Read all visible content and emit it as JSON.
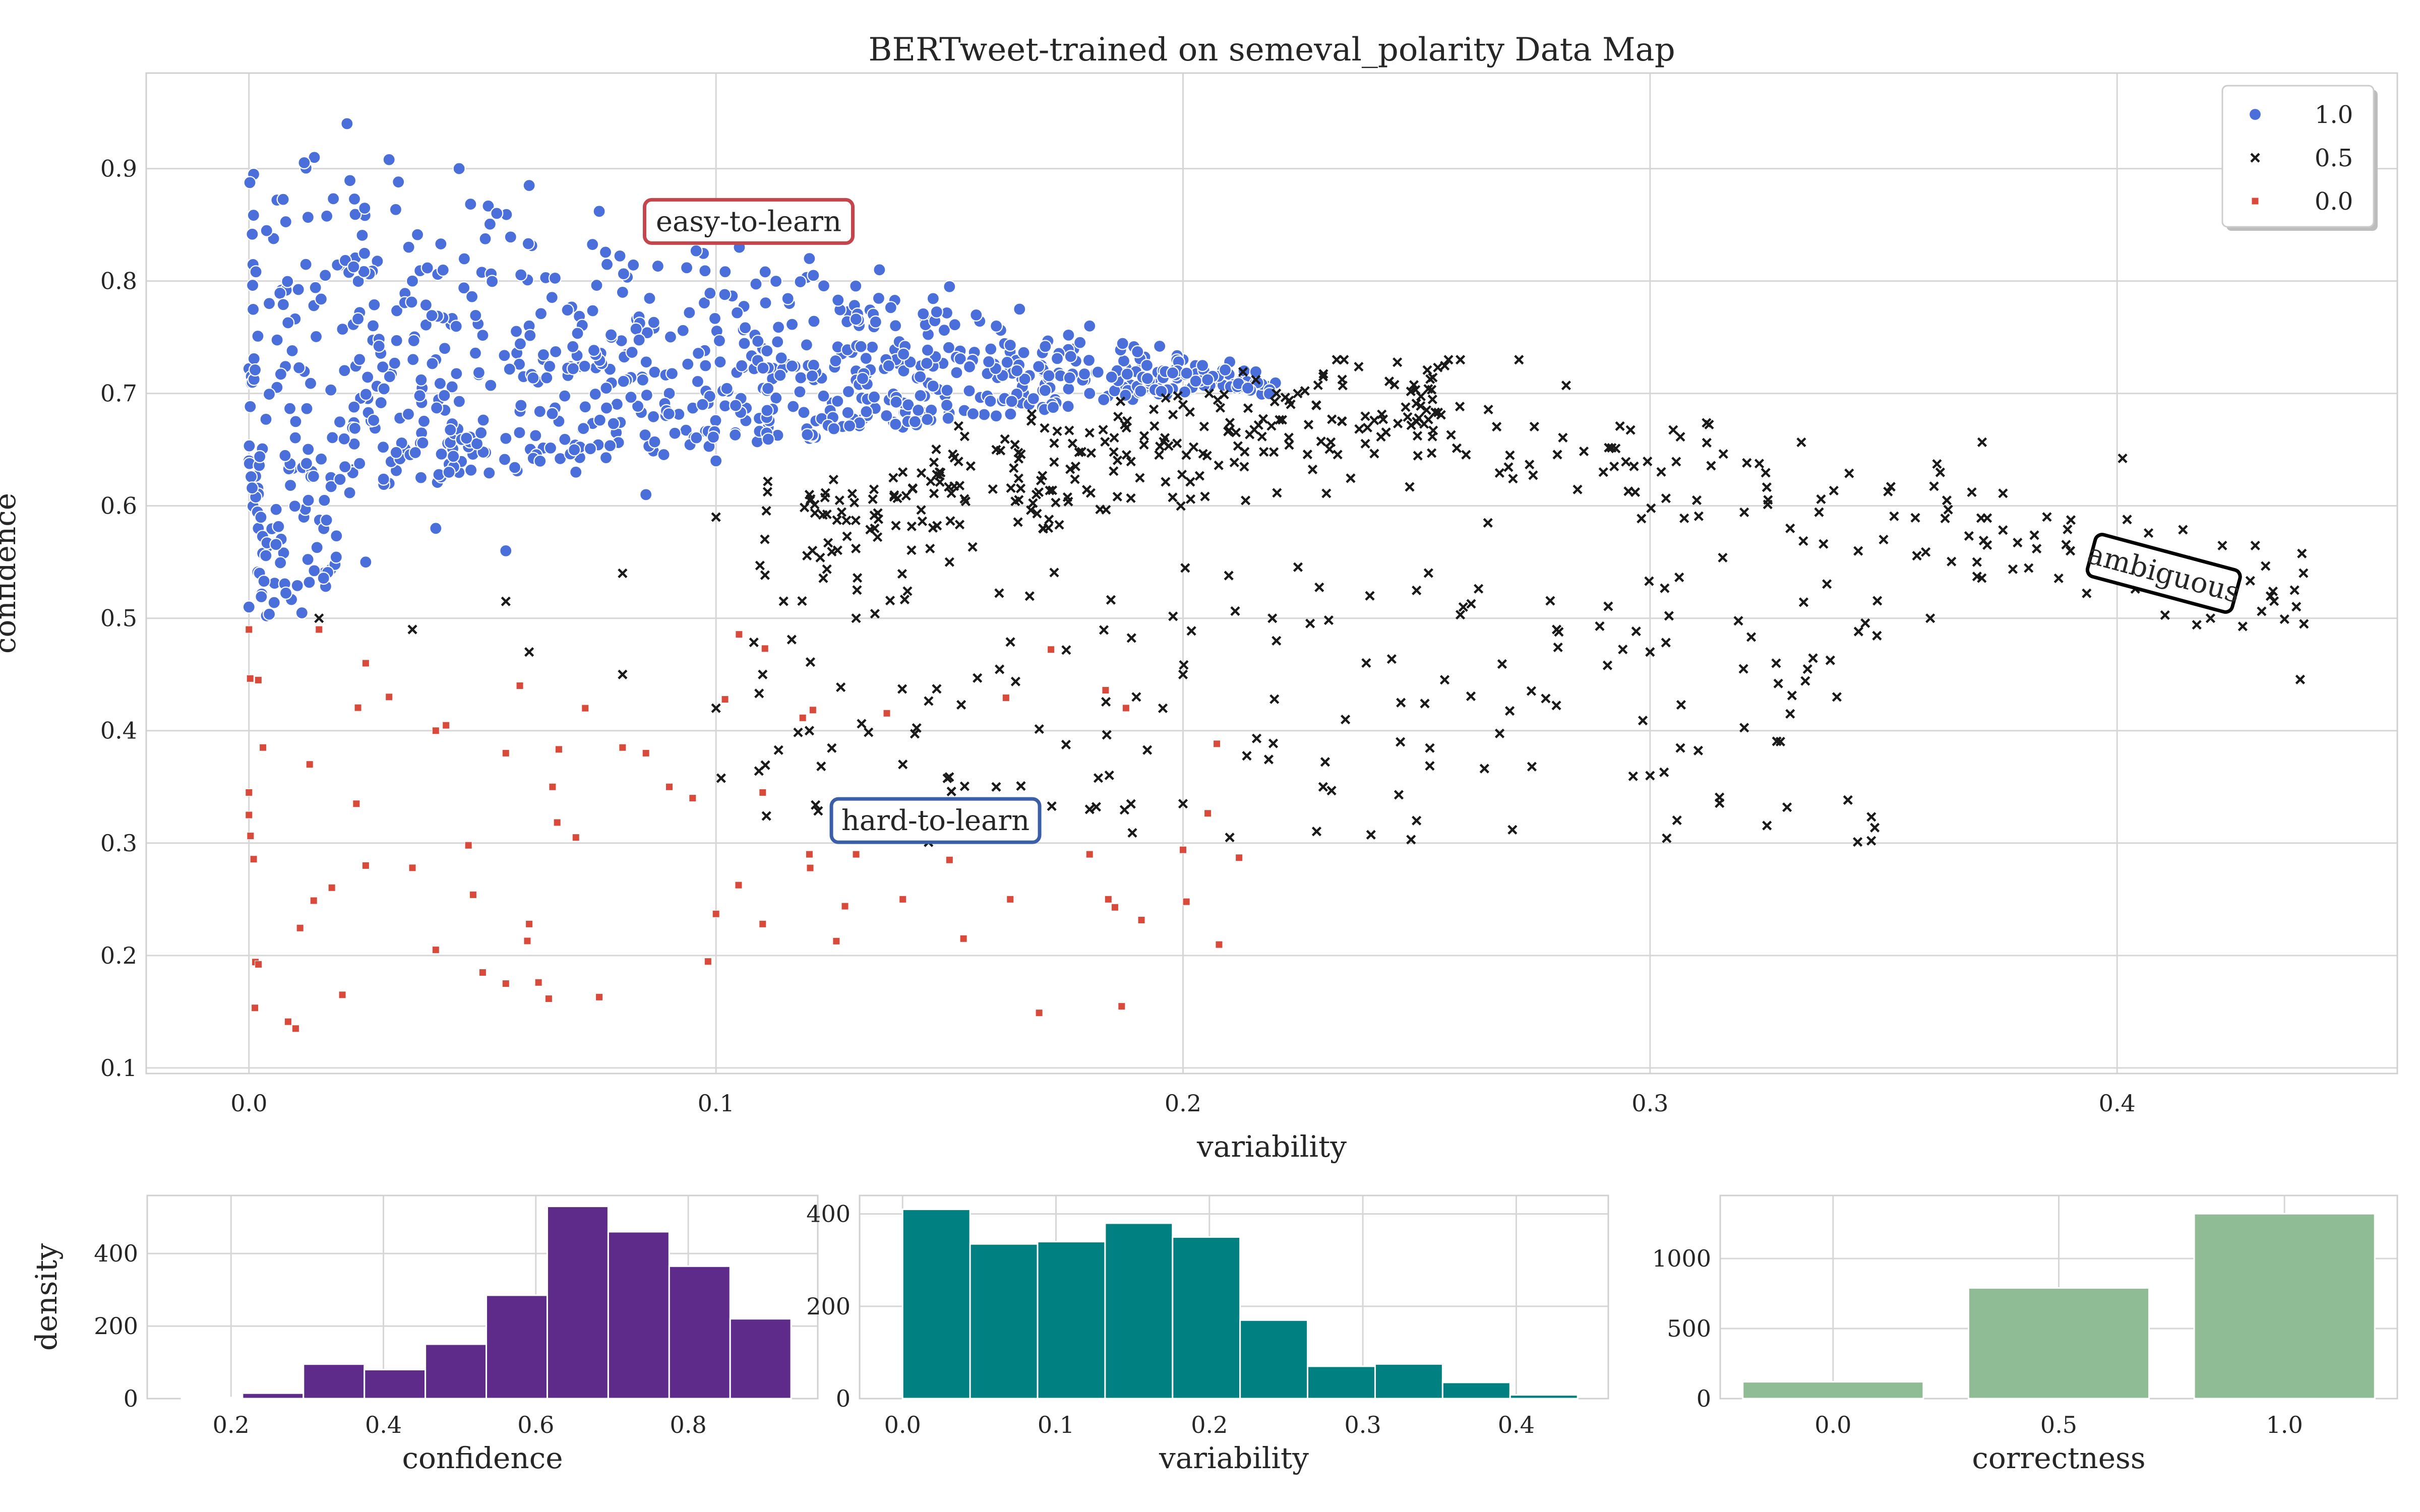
{
  "chart_data": [
    {
      "id": "datamap",
      "type": "scatter",
      "title": "BERTweet-trained on semeval_polarity Data Map",
      "xlabel": "variability",
      "ylabel": "confidence",
      "xlim": [
        -0.022,
        0.46
      ],
      "ylim": [
        0.095,
        0.985
      ],
      "xticks": [
        0.0,
        0.1,
        0.2,
        0.3,
        0.4
      ],
      "xtick_labels": [
        "0.0",
        "0.1",
        "0.2",
        "0.3",
        "0.4"
      ],
      "yticks": [
        0.1,
        0.2,
        0.3,
        0.4,
        0.5,
        0.6,
        0.7,
        0.8,
        0.9
      ],
      "ytick_labels": [
        "0.1",
        "0.2",
        "0.3",
        "0.4",
        "0.5",
        "0.6",
        "0.7",
        "0.8",
        "0.9"
      ],
      "grid": true,
      "legend_position": "top-right",
      "series": [
        {
          "name": "1.0",
          "marker": "circle",
          "color": "#4a6fdb",
          "sample_points": [
            [
              0.001,
              0.895
            ],
            [
              0.006,
              0.872
            ],
            [
              0.014,
              0.91
            ],
            [
              0.021,
              0.94
            ],
            [
              0.03,
              0.908
            ],
            [
              0.045,
              0.9
            ],
            [
              0.06,
              0.885
            ],
            [
              0.075,
              0.862
            ],
            [
              0.09,
              0.852
            ],
            [
              0.105,
              0.83
            ],
            [
              0.12,
              0.82
            ],
            [
              0.135,
              0.81
            ],
            [
              0.15,
              0.795
            ],
            [
              0.165,
              0.775
            ],
            [
              0.18,
              0.76
            ],
            [
              0.195,
              0.742
            ],
            [
              0.21,
              0.728
            ],
            [
              0.0,
              0.722
            ],
            [
              0.0,
              0.64
            ],
            [
              0.002,
              0.58
            ],
            [
              0.0,
              0.51
            ],
            [
              0.01,
              0.675
            ],
            [
              0.03,
              0.62
            ],
            [
              0.055,
              0.66
            ],
            [
              0.07,
              0.63
            ],
            [
              0.085,
              0.61
            ],
            [
              0.1,
              0.64
            ],
            [
              0.12,
              0.66
            ],
            [
              0.14,
              0.67
            ],
            [
              0.16,
              0.68
            ],
            [
              0.18,
              0.7
            ],
            [
              0.04,
              0.73
            ],
            [
              0.06,
              0.76
            ],
            [
              0.08,
              0.79
            ],
            [
              0.11,
              0.74
            ],
            [
              0.13,
              0.72
            ],
            [
              0.15,
              0.74
            ],
            [
              0.17,
              0.72
            ],
            [
              0.025,
              0.55
            ],
            [
              0.04,
              0.58
            ],
            [
              0.055,
              0.56
            ],
            [
              0.035,
              0.8
            ],
            [
              0.09,
              0.7
            ],
            [
              0.2,
              0.73
            ]
          ]
        },
        {
          "name": "0.5",
          "marker": "x",
          "color": "#1a1a1a",
          "sample_points": [
            [
              0.015,
              0.5
            ],
            [
              0.035,
              0.49
            ],
            [
              0.055,
              0.515
            ],
            [
              0.08,
              0.54
            ],
            [
              0.1,
              0.59
            ],
            [
              0.12,
              0.61
            ],
            [
              0.14,
              0.63
            ],
            [
              0.16,
              0.65
            ],
            [
              0.18,
              0.665
            ],
            [
              0.2,
              0.69
            ],
            [
              0.22,
              0.7
            ],
            [
              0.23,
              0.715
            ],
            [
              0.25,
              0.675
            ],
            [
              0.27,
              0.645
            ],
            [
              0.29,
              0.63
            ],
            [
              0.31,
              0.605
            ],
            [
              0.33,
              0.58
            ],
            [
              0.35,
              0.57
            ],
            [
              0.37,
              0.55
            ],
            [
              0.39,
              0.56
            ],
            [
              0.44,
              0.495
            ],
            [
              0.438,
              0.525
            ],
            [
              0.42,
              0.5
            ],
            [
              0.1,
              0.42
            ],
            [
              0.12,
              0.4
            ],
            [
              0.14,
              0.37
            ],
            [
              0.16,
              0.35
            ],
            [
              0.18,
              0.33
            ],
            [
              0.2,
              0.335
            ],
            [
              0.21,
              0.305
            ],
            [
              0.19,
              0.43
            ],
            [
              0.2,
              0.45
            ],
            [
              0.22,
              0.48
            ],
            [
              0.24,
              0.52
            ],
            [
              0.26,
              0.51
            ],
            [
              0.28,
              0.49
            ],
            [
              0.3,
              0.47
            ],
            [
              0.32,
              0.455
            ],
            [
              0.34,
              0.43
            ],
            [
              0.3,
              0.36
            ],
            [
              0.303,
              0.363
            ],
            [
              0.23,
              0.35
            ],
            [
              0.25,
              0.32
            ],
            [
              0.33,
              0.415
            ],
            [
              0.327,
              0.46
            ],
            [
              0.36,
              0.5
            ],
            [
              0.06,
              0.47
            ],
            [
              0.08,
              0.45
            ],
            [
              0.15,
              0.55
            ],
            [
              0.17,
              0.58
            ],
            [
              0.13,
              0.5
            ],
            [
              0.11,
              0.45
            ]
          ]
        },
        {
          "name": "0.0",
          "marker": "square",
          "color": "#d94a3a",
          "sample_points": [
            [
              0.0,
              0.49
            ],
            [
              0.002,
              0.445
            ],
            [
              0.003,
              0.385
            ],
            [
              0.0,
              0.345
            ],
            [
              0.0,
              0.325
            ],
            [
              0.01,
              0.135
            ],
            [
              0.02,
              0.165
            ],
            [
              0.025,
              0.28
            ],
            [
              0.035,
              0.278
            ],
            [
              0.04,
              0.205
            ],
            [
              0.047,
              0.298
            ],
            [
              0.048,
              0.254
            ],
            [
              0.055,
              0.175
            ],
            [
              0.06,
              0.228
            ],
            [
              0.062,
              0.176
            ],
            [
              0.07,
              0.305
            ],
            [
              0.075,
              0.163
            ],
            [
              0.08,
              0.385
            ],
            [
              0.09,
              0.35
            ],
            [
              0.1,
              0.237
            ],
            [
              0.11,
              0.228
            ],
            [
              0.11,
              0.345
            ],
            [
              0.12,
              0.29
            ],
            [
              0.13,
              0.29
            ],
            [
              0.14,
              0.25
            ],
            [
              0.15,
              0.285
            ],
            [
              0.153,
              0.215
            ],
            [
              0.163,
              0.25
            ],
            [
              0.18,
              0.29
            ],
            [
              0.184,
              0.25
            ],
            [
              0.2,
              0.294
            ],
            [
              0.212,
              0.287
            ],
            [
              0.015,
              0.49
            ],
            [
              0.025,
              0.46
            ],
            [
              0.04,
              0.4
            ],
            [
              0.055,
              0.38
            ],
            [
              0.065,
              0.35
            ],
            [
              0.072,
              0.42
            ],
            [
              0.085,
              0.38
            ],
            [
              0.095,
              0.34
            ],
            [
              0.03,
              0.43
            ],
            [
              0.013,
              0.37
            ],
            [
              0.023,
              0.335
            ],
            [
              0.058,
              0.44
            ]
          ]
        }
      ],
      "annotations": [
        {
          "text": "easy-to-learn",
          "x": 0.107,
          "y": 0.853,
          "border": "#c4464c",
          "rotation": 0
        },
        {
          "text": "hard-to-learn",
          "x": 0.147,
          "y": 0.32,
          "border": "#3a5fa8",
          "rotation": 0
        },
        {
          "text": "ambiguous",
          "x": 0.41,
          "y": 0.54,
          "border": "#000000",
          "rotation": 15
        }
      ]
    },
    {
      "id": "hist-confidence",
      "type": "bar",
      "xlabel": "confidence",
      "ylabel": "density",
      "color": "#5e2b8a",
      "xlim": [
        0.09,
        0.97
      ],
      "ylim": [
        0,
        560
      ],
      "xticks": [
        0.2,
        0.4,
        0.6,
        0.8
      ],
      "xtick_labels": [
        "0.2",
        "0.4",
        "0.6",
        "0.8"
      ],
      "yticks": [
        0,
        200,
        400
      ],
      "ytick_labels": [
        "0",
        "200",
        "400"
      ],
      "bin_edges": [
        0.135,
        0.215,
        0.295,
        0.375,
        0.455,
        0.535,
        0.615,
        0.695,
        0.775,
        0.855,
        0.935
      ],
      "values": [
        3,
        15,
        95,
        80,
        150,
        285,
        530,
        460,
        365,
        220
      ]
    },
    {
      "id": "hist-variability",
      "type": "bar",
      "xlabel": "variability",
      "ylabel": "",
      "color": "#008080",
      "xlim": [
        -0.028,
        0.46
      ],
      "ylim": [
        0,
        440
      ],
      "xticks": [
        0.0,
        0.1,
        0.2,
        0.3,
        0.4
      ],
      "xtick_labels": [
        "0.0",
        "0.1",
        "0.2",
        "0.3",
        "0.4"
      ],
      "yticks": [
        0,
        200,
        400
      ],
      "ytick_labels": [
        "0",
        "200",
        "400"
      ],
      "bin_edges": [
        0.0,
        0.044,
        0.088,
        0.132,
        0.176,
        0.22,
        0.264,
        0.308,
        0.352,
        0.396,
        0.44
      ],
      "values": [
        410,
        335,
        340,
        380,
        350,
        170,
        70,
        75,
        35,
        8
      ]
    },
    {
      "id": "hist-correctness",
      "type": "bar",
      "xlabel": "correctness",
      "ylabel": "",
      "color": "#8fbc94",
      "xlim": [
        -0.25,
        1.25
      ],
      "ylim": [
        0,
        1450
      ],
      "xticks": [
        0.0,
        0.5,
        1.0
      ],
      "xtick_labels": [
        "0.0",
        "0.5",
        "1.0"
      ],
      "yticks": [
        0,
        500,
        1000
      ],
      "ytick_labels": [
        "0",
        "500",
        "1000"
      ],
      "categories": [
        0.0,
        0.5,
        1.0
      ],
      "bar_width": 0.4,
      "values": [
        120,
        790,
        1320
      ]
    }
  ]
}
